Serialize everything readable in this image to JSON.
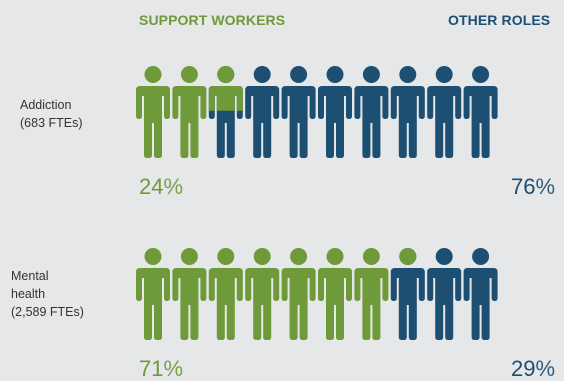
{
  "colors": {
    "support": "#6f9a3a",
    "other": "#1c4f72",
    "background": "#e6e7e8"
  },
  "headers": {
    "support": "SUPPORT WORKERS",
    "other": "OTHER ROLES"
  },
  "chart_data": {
    "type": "pictograph",
    "icon": "person-icon",
    "icons_per_row": 10,
    "series": [
      {
        "name": "SUPPORT WORKERS"
      },
      {
        "name": "OTHER ROLES"
      }
    ],
    "rows": [
      {
        "label_lines": [
          "Addiction",
          "(683 FTEs)"
        ],
        "support_pct": 24,
        "other_pct": 76,
        "support_text": "24",
        "other_text": "76"
      },
      {
        "label_lines": [
          "Mental",
          "health",
          "(2,589 FTEs)"
        ],
        "support_pct": 71,
        "other_pct": 29,
        "support_text": "71",
        "other_text": "29"
      }
    ],
    "percent_sign": "%"
  }
}
